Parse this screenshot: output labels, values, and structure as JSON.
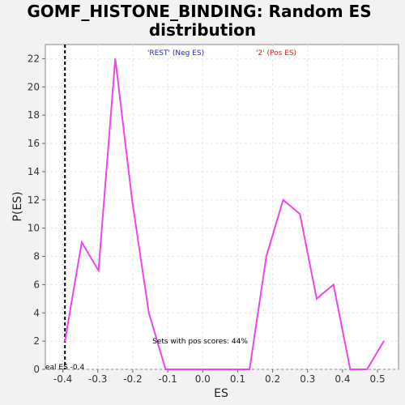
{
  "chart_data": {
    "type": "line",
    "title_line1": "GOMF_HISTONE_BINDING: Random ES",
    "title_line2": "distribution",
    "xlabel": "ES",
    "ylabel": "P(ES)",
    "xlim": [
      -0.45,
      0.56
    ],
    "ylim": [
      0,
      23
    ],
    "x_ticks": [
      -0.4,
      -0.3,
      -0.2,
      -0.1,
      0.0,
      0.1,
      0.2,
      0.3,
      0.4,
      0.5
    ],
    "x_tick_labels": [
      "-0.4",
      "-0.3",
      "-0.2",
      "-0.1",
      "0.0",
      "0.1",
      "0.2",
      "0.3",
      "0.4",
      "0.5"
    ],
    "y_ticks": [
      0,
      2,
      4,
      6,
      8,
      10,
      12,
      14,
      16,
      18,
      20,
      22
    ],
    "y_tick_labels": [
      "0",
      "2",
      "4",
      "6",
      "8",
      "10",
      "12",
      "14",
      "16",
      "18",
      "20",
      "22"
    ],
    "grid": true,
    "series": [
      {
        "color": "#ee44ee",
        "x": [
          -0.394,
          -0.346,
          -0.298,
          -0.25,
          -0.202,
          -0.154,
          -0.106,
          -0.058,
          -0.01,
          0.038,
          0.086,
          0.134,
          0.182,
          0.23,
          0.278,
          0.326,
          0.374,
          0.422,
          0.47,
          0.518
        ],
        "y": [
          2,
          9,
          7,
          22,
          12,
          4,
          0,
          0,
          0,
          0,
          0,
          0,
          8,
          12,
          11,
          5,
          6,
          0,
          0,
          2
        ]
      }
    ],
    "real_es": {
      "value": -0.394,
      "label": "eal ES -0.4",
      "color": "#000000"
    },
    "legend": {
      "placement": "top",
      "neg_label": "'REST' (Neg ES)",
      "neg_color": "#2222cc",
      "pos_label": "'2' (Pos ES)",
      "pos_color": "#dd2222"
    },
    "annotation": "Sets with pos scores: 44%"
  }
}
